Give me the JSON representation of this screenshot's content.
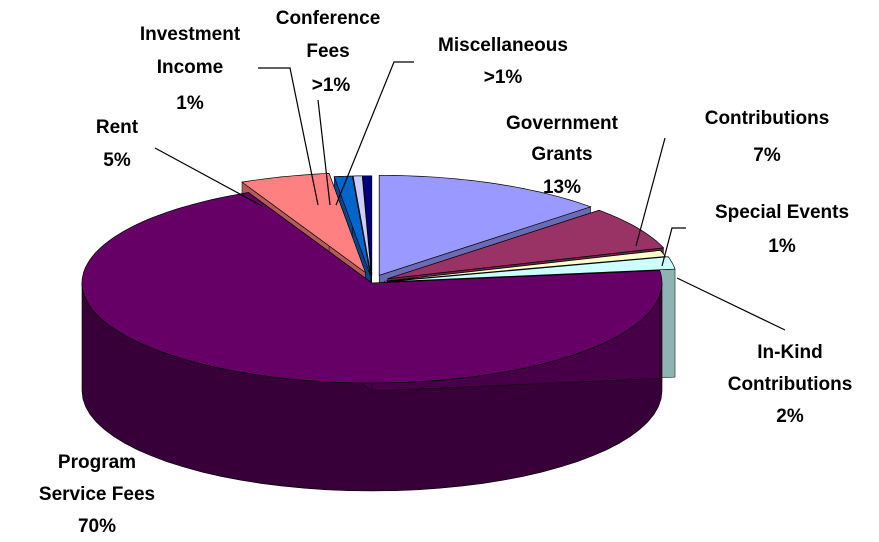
{
  "chart_data": {
    "type": "pie",
    "title": "",
    "three_d": true,
    "exploded": true,
    "slices": [
      {
        "label": "Government Grants",
        "display": "13%",
        "value": 13,
        "color": "#9999ff"
      },
      {
        "label": "Contributions",
        "display": "7%",
        "value": 7,
        "color": "#993366"
      },
      {
        "label": "Special Events",
        "display": "1%",
        "value": 1,
        "color": "#ffffcc"
      },
      {
        "label": "In-Kind Contributions",
        "display": "2%",
        "value": 2,
        "color": "#ccffff"
      },
      {
        "label": "Program Service Fees",
        "display": "70%",
        "value": 70,
        "color": "#660066"
      },
      {
        "label": "Rent",
        "display": "5%",
        "value": 5,
        "color": "#ff8080"
      },
      {
        "label": "Investment Income",
        "display": "1%",
        "value": 1,
        "color": "#0066cc"
      },
      {
        "label": "Conference Fees",
        "display": ">1%",
        "value": 0.5,
        "color": "#ccccff"
      },
      {
        "label": "Miscellaneous",
        "display": ">1%",
        "value": 0.5,
        "color": "#000080"
      }
    ]
  }
}
